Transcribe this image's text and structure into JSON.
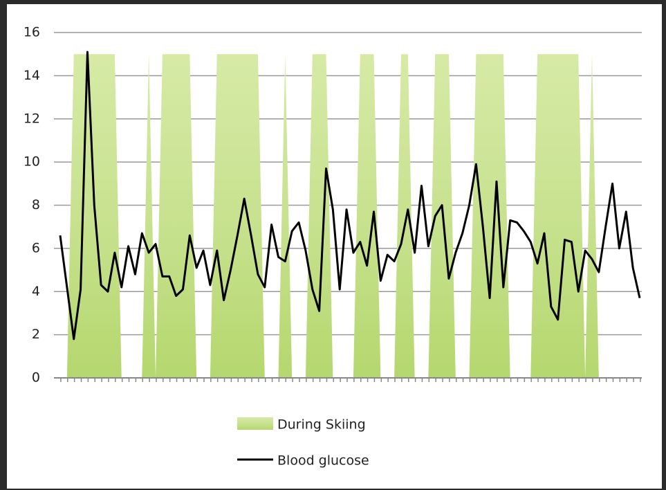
{
  "chart_data": {
    "type": "line",
    "categories": [
      null,
      null,
      null,
      null,
      null,
      null,
      null,
      null,
      null,
      null,
      null,
      null,
      null,
      null,
      null,
      null,
      null,
      null,
      null,
      null,
      null,
      null,
      null,
      null,
      null,
      null,
      null,
      null,
      null,
      null,
      null,
      null,
      null,
      null,
      null,
      null,
      null,
      null,
      null,
      null,
      null,
      null,
      null,
      null,
      null,
      null,
      null,
      null,
      null,
      null,
      null,
      null,
      null,
      null,
      null,
      null,
      null,
      null,
      null,
      null,
      null,
      null,
      null,
      null,
      null,
      null,
      null,
      null,
      null,
      null,
      null,
      null,
      null,
      null,
      null,
      null,
      null,
      null,
      null,
      null,
      null,
      null,
      null,
      null,
      null,
      null
    ],
    "series": [
      {
        "name": "During Skiing",
        "type": "area",
        "color": "#c3df86",
        "values": [
          0,
          0,
          15,
          15,
          15,
          15,
          15,
          15,
          15,
          0,
          0,
          0,
          0,
          15,
          0,
          15,
          15,
          15,
          15,
          15,
          0,
          0,
          0,
          15,
          15,
          15,
          15,
          15,
          15,
          15,
          0,
          0,
          0,
          15,
          0,
          0,
          0,
          15,
          15,
          15,
          0,
          0,
          0,
          0,
          15,
          15,
          15,
          0,
          0,
          0,
          15,
          15,
          0,
          0,
          0,
          15,
          15,
          15,
          0,
          0,
          0,
          15,
          15,
          15,
          15,
          15,
          0,
          0,
          0,
          0,
          15,
          15,
          15,
          15,
          15,
          15,
          15,
          0,
          15,
          0,
          0,
          0,
          0,
          0,
          0,
          0
        ]
      },
      {
        "name": "Blood glucose",
        "type": "line",
        "color": "#000000",
        "values": [
          6.6,
          4.2,
          1.8,
          4.1,
          15.1,
          8.0,
          4.3,
          4.0,
          5.8,
          4.2,
          6.1,
          4.8,
          6.7,
          5.8,
          6.2,
          4.7,
          4.7,
          3.8,
          4.1,
          6.6,
          5.1,
          5.9,
          4.3,
          5.9,
          3.6,
          5.0,
          6.6,
          8.3,
          6.6,
          4.8,
          4.2,
          7.1,
          5.6,
          5.4,
          6.8,
          7.2,
          5.9,
          4.1,
          3.1,
          9.7,
          7.8,
          4.1,
          7.8,
          5.8,
          6.3,
          5.2,
          7.7,
          4.5,
          5.7,
          5.4,
          6.2,
          7.8,
          5.8,
          8.9,
          6.1,
          7.5,
          8.0,
          4.6,
          5.8,
          6.7,
          8.0,
          9.9,
          7.0,
          3.7,
          9.1,
          4.2,
          7.3,
          7.2,
          6.8,
          6.3,
          5.3,
          6.7,
          3.3,
          2.7,
          6.4,
          6.3,
          4.0,
          5.9,
          5.5,
          4.9,
          7.0,
          9.0,
          6.0,
          7.7,
          5.1,
          3.7
        ]
      }
    ],
    "ylim": [
      0,
      16
    ],
    "yticks": [
      0,
      2,
      4,
      6,
      8,
      10,
      12,
      14,
      16
    ],
    "grid": true,
    "legend": "bottom"
  }
}
